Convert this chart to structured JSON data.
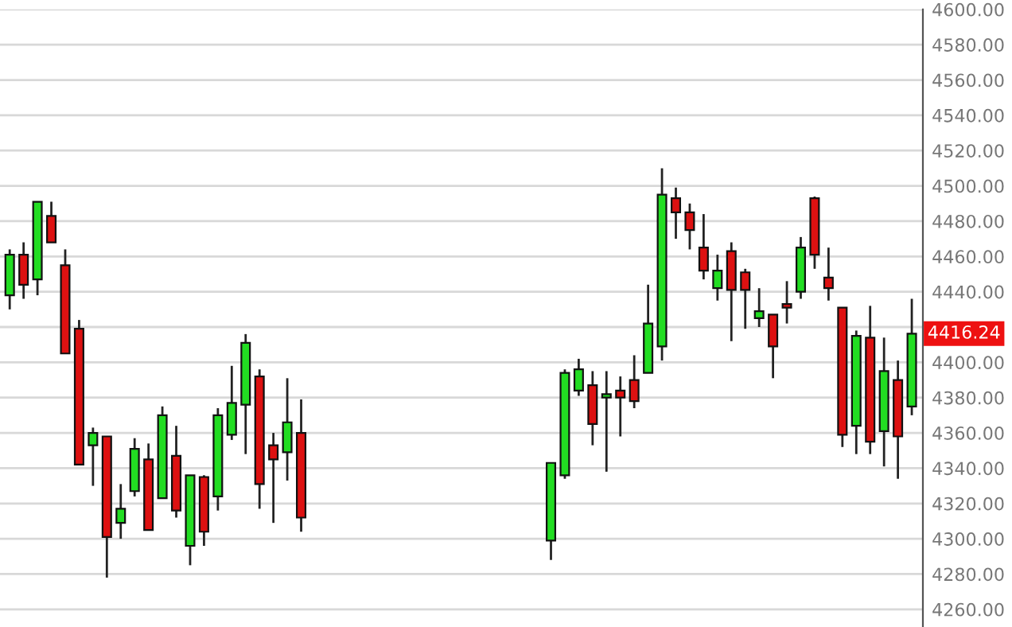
{
  "chart_data": {
    "type": "candlestick",
    "categories": [
      null,
      null,
      null,
      null,
      null,
      null,
      null,
      null,
      null,
      null,
      null,
      null,
      null,
      null,
      null,
      null,
      null,
      null,
      null,
      null,
      null,
      null,
      null,
      null,
      null,
      null,
      null,
      null,
      null,
      null,
      null,
      null,
      null,
      null,
      null,
      null,
      null,
      null,
      null,
      null,
      null,
      null,
      null,
      null,
      null,
      null,
      null,
      null,
      null,
      null,
      null,
      null,
      null,
      null,
      null,
      null,
      null,
      null,
      null,
      null,
      null,
      null,
      null,
      null,
      null,
      null
    ],
    "ohlc": [
      [
        4438,
        4464,
        4430,
        4461
      ],
      [
        4461,
        4468,
        4436,
        4444
      ],
      [
        4447,
        4491,
        4438,
        4491
      ],
      [
        4483,
        4491,
        4468,
        4468
      ],
      [
        4455,
        4464,
        4405,
        4405
      ],
      [
        4419,
        4424,
        4342,
        4342
      ],
      [
        4353,
        4363,
        4330,
        4360
      ],
      [
        4358,
        4358,
        4278,
        4301
      ],
      [
        4309,
        4331,
        4300,
        4317
      ],
      [
        4327,
        4357,
        4324,
        4351
      ],
      [
        4345,
        4354,
        4305,
        4305
      ],
      [
        4323,
        4375,
        4323,
        4370
      ],
      [
        4347,
        4364,
        4312,
        4316
      ],
      [
        4296,
        4336,
        4285,
        4336
      ],
      [
        4335,
        4336,
        4296,
        4304
      ],
      [
        4324,
        4374,
        4316,
        4370
      ],
      [
        4359,
        4398,
        4356,
        4377
      ],
      [
        4376,
        4416,
        4348,
        4411
      ],
      [
        4392,
        4396,
        4317,
        4331
      ],
      [
        4353,
        4360,
        4309,
        4345
      ],
      [
        4349,
        4391,
        4333,
        4366
      ],
      [
        4360,
        4379,
        4304,
        4312
      ],
      null,
      null,
      null,
      null,
      null,
      null,
      null,
      null,
      null,
      null,
      null,
      null,
      null,
      null,
      null,
      null,
      null,
      [
        4299,
        4343,
        4288,
        4343
      ],
      [
        4336,
        4396,
        4334,
        4394
      ],
      [
        4384,
        4402,
        4381,
        4396
      ],
      [
        4387,
        4395,
        4353,
        4365
      ],
      [
        4380,
        4395,
        4338,
        4382
      ],
      [
        4384,
        4392,
        4358,
        4380
      ],
      [
        4390,
        4404,
        4374,
        4378
      ],
      [
        4394,
        4444,
        4394,
        4422
      ],
      [
        4409,
        4510,
        4401,
        4495
      ],
      [
        4493,
        4499,
        4470,
        4485
      ],
      [
        4485,
        4490,
        4464,
        4475
      ],
      [
        4465,
        4484,
        4447,
        4452
      ],
      [
        4442,
        4461,
        4435,
        4452
      ],
      [
        4463,
        4468,
        4412,
        4441
      ],
      [
        4451,
        4453,
        4419,
        4441
      ],
      [
        4425,
        4442,
        4420,
        4429
      ],
      [
        4427,
        4427,
        4391,
        4409
      ],
      [
        4433,
        4446,
        4422,
        4431
      ],
      [
        4440,
        4471,
        4436,
        4465
      ],
      [
        4493,
        4494,
        4453,
        4461
      ],
      [
        4448,
        4465,
        4435,
        4442
      ],
      [
        4431,
        4431,
        4352,
        4359
      ],
      [
        4364,
        4418,
        4348,
        4415
      ],
      [
        4414,
        4432,
        4348,
        4355
      ],
      [
        4361,
        4414,
        4341,
        4395
      ],
      [
        4390,
        4401,
        4334,
        4358
      ],
      [
        4375,
        4436,
        4370,
        4416.24
      ]
    ],
    "colors": [
      "#22dd22",
      "#dd1111",
      "#22dd22",
      "#dd1111",
      "#dd1111",
      "#dd1111",
      "#22dd22",
      "#dd1111",
      "#22dd22",
      "#22dd22",
      "#dd1111",
      "#22dd22",
      "#dd1111",
      "#22dd22",
      "#dd1111",
      "#22dd22",
      "#22dd22",
      "#22dd22",
      "#dd1111",
      "#dd1111",
      "#22dd22",
      "#dd1111",
      null,
      null,
      null,
      null,
      null,
      null,
      null,
      null,
      null,
      null,
      null,
      null,
      null,
      null,
      null,
      null,
      null,
      "#22dd22",
      "#22dd22",
      "#22dd22",
      "#dd1111",
      "#22dd22",
      "#dd1111",
      "#dd1111",
      "#22dd22",
      "#22dd22",
      "#dd1111",
      "#dd1111",
      "#dd1111",
      "#22dd22",
      "#dd1111",
      "#dd1111",
      "#22dd22",
      "#dd1111",
      "#dd1111",
      "#22dd22",
      "#dd1111",
      "#dd1111",
      "#dd1111",
      "#22dd22",
      "#dd1111",
      "#22dd22",
      "#dd1111",
      "#22dd22"
    ],
    "ylim": [
      4250,
      4600
    ],
    "yticks": [
      {
        "value": 4260,
        "label": "4260.00"
      },
      {
        "value": 4280,
        "label": "4280.00"
      },
      {
        "value": 4300,
        "label": "4300.00"
      },
      {
        "value": 4320,
        "label": "4320.00"
      },
      {
        "value": 4340,
        "label": "4340.00"
      },
      {
        "value": 4360,
        "label": "4360.00"
      },
      {
        "value": 4380,
        "label": "4380.00"
      },
      {
        "value": 4400,
        "label": "4400.00"
      },
      {
        "value": 4420,
        "label": null
      },
      {
        "value": 4440,
        "label": "4440.00"
      },
      {
        "value": 4460,
        "label": "4460.00"
      },
      {
        "value": 4480,
        "label": "4480.00"
      },
      {
        "value": 4500,
        "label": "4500.00"
      },
      {
        "value": 4520,
        "label": "4520.00"
      },
      {
        "value": 4540,
        "label": "4540.00"
      },
      {
        "value": 4560,
        "label": "4560.00"
      },
      {
        "value": 4580,
        "label": "4580.00"
      },
      {
        "value": 4600,
        "label": "4600.00"
      }
    ],
    "annotations": [
      "4416.24"
    ],
    "grid": "y",
    "tick_labels": "y"
  }
}
